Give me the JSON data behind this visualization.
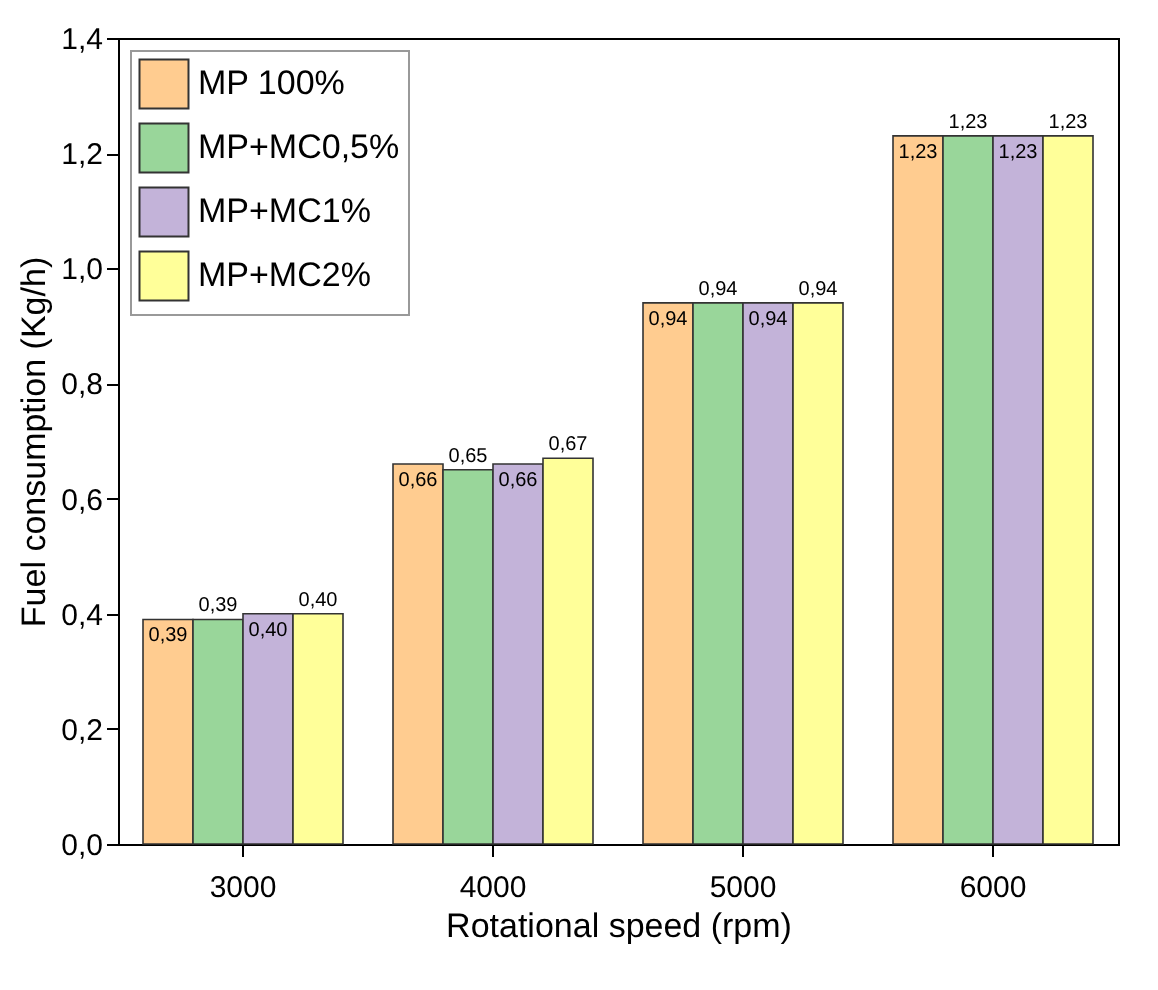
{
  "chart_data": {
    "type": "bar",
    "xlabel": "Rotational speed (rpm)",
    "ylabel": "Fuel consumption (Kg/h)",
    "categories": [
      "3000",
      "4000",
      "5000",
      "6000"
    ],
    "series": [
      {
        "name": "MP 100%",
        "color": "#ffcc90",
        "values": [
          0.39,
          0.66,
          0.94,
          1.23
        ],
        "value_labels": [
          "0,39",
          "0,66",
          "0,94",
          "1,23"
        ]
      },
      {
        "name": "MP+MC0,5%",
        "color": "#99d69a",
        "values": [
          0.39,
          0.65,
          0.94,
          1.23
        ],
        "value_labels": [
          "0,39",
          "0,65",
          "0,94",
          "1,23"
        ]
      },
      {
        "name": "MP+MC1%",
        "color": "#c3b3d9",
        "values": [
          0.4,
          0.66,
          0.94,
          1.23
        ],
        "value_labels": [
          "0,40",
          "0,66",
          "0,94",
          "1,23"
        ]
      },
      {
        "name": "MP+MC2%",
        "color": "#ffff99",
        "values": [
          0.4,
          0.67,
          0.94,
          1.23
        ],
        "value_labels": [
          "0,40",
          "0,67",
          "0,94",
          "1,23"
        ]
      }
    ],
    "ylim": [
      0,
      1.4
    ],
    "yticks": [
      {
        "value": 0,
        "label": "0,0"
      },
      {
        "value": 0.2,
        "label": "0,2"
      },
      {
        "value": 0.4,
        "label": "0,4"
      },
      {
        "value": 0.6,
        "label": "0,6"
      },
      {
        "value": 0.8,
        "label": "0,8"
      },
      {
        "value": 1.0,
        "label": "1,0"
      },
      {
        "value": 1.2,
        "label": "1,2"
      },
      {
        "value": 1.4,
        "label": "1,4"
      }
    ],
    "grid": false,
    "legend": "top left"
  }
}
